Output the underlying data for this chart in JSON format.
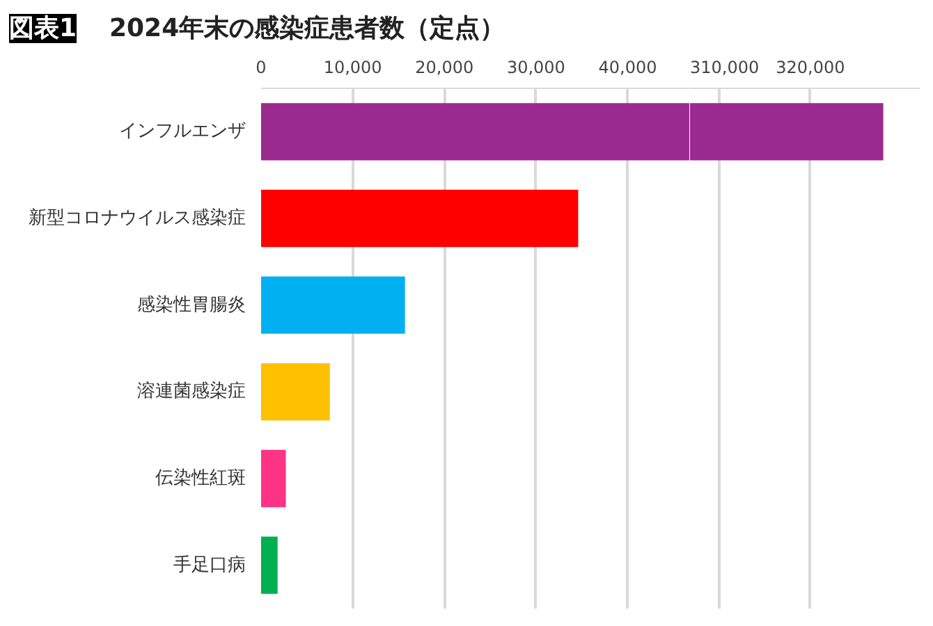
{
  "chart_data": [
    {
      "type": "bar",
      "orientation": "horizontal",
      "title": "2024年末の感染症患者数（定点）",
      "annotations": [
        "図表1"
      ],
      "categories": [
        "インフルエンザ",
        "新型コロナウイルス感染症",
        "感染性胃腸炎",
        "溶連菌感染症",
        "伝染性紅斑",
        "手足口病"
      ],
      "values": [
        46800,
        34600,
        15700,
        7500,
        2700,
        1800
      ],
      "colors": [
        "#9b2a8f",
        "#ff0000",
        "#00b0f0",
        "#ffc000",
        "#ff3385",
        "#00b050"
      ],
      "xlim": [
        0,
        46800
      ],
      "xticks": [
        0,
        {
          "value": 10000,
          "label": "10,000"
        },
        {
          "value": 20000,
          "label": "20,000"
        },
        {
          "value": 30000,
          "label": "30,000"
        },
        {
          "value": 40000,
          "label": "40,000"
        }
      ],
      "grid": "x"
    },
    {
      "type": "bar",
      "orientation": "horizontal",
      "categories": [
        null,
        null,
        null,
        null,
        null,
        null
      ],
      "values": [
        328000,
        null,
        null,
        null,
        null,
        null
      ],
      "colors": [
        "#9b2a8f",
        "#ff0000",
        "#00b0f0",
        "#ffc000",
        "#ff3385",
        "#00b050"
      ],
      "xlim": [
        306800,
        332000
      ],
      "xticks": [
        {
          "value": 310000,
          "label": "310,000"
        },
        {
          "value": 320000,
          "label": "320,000"
        }
      ],
      "grid": "x",
      "tick_labels": "x"
    }
  ]
}
